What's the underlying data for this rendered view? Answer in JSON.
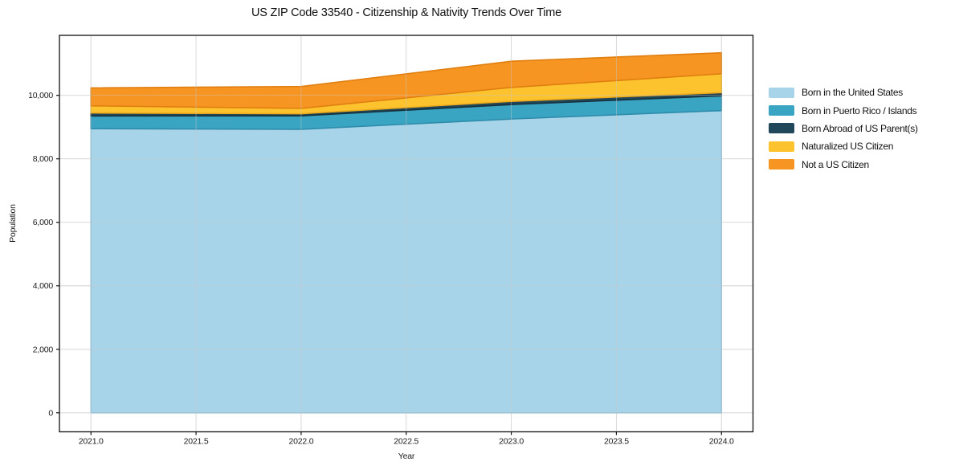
{
  "title": "US ZIP Code 33540 - Citizenship & Nativity Trends Over Time",
  "chart_data": {
    "type": "area",
    "stacked": true,
    "title": "US ZIP Code 33540 - Citizenship & Nativity Trends Over Time",
    "xlabel": "Year",
    "ylabel": "Population",
    "x": [
      2021,
      2022,
      2023,
      2024
    ],
    "series": [
      {
        "name": "Born in the United States",
        "color": "#a8d4e9",
        "edge": "#8fc3db",
        "values": [
          8950,
          8930,
          9255,
          9520
        ]
      },
      {
        "name": "Born in Puerto Rico / Islands",
        "color": "#3aa5c2",
        "edge": "#2e8cab",
        "values": [
          400,
          425,
          455,
          465
        ]
      },
      {
        "name": "Born Abroad of US Parent(s)",
        "color": "#21475a",
        "edge": "#17323f",
        "values": [
          95,
          65,
          100,
          100
        ]
      },
      {
        "name": "Naturalized US Citizen",
        "color": "#fcc32f",
        "edge": "#edaa1b",
        "values": [
          225,
          170,
          440,
          595
        ]
      },
      {
        "name": "Not a US Citizen",
        "color": "#f79522",
        "edge": "#e07f10",
        "values": [
          565,
          690,
          825,
          660
        ]
      }
    ],
    "totals": [
      10235,
      10280,
      11075,
      11340
    ],
    "xticks": {
      "values": [
        2021.0,
        2021.5,
        2022.0,
        2022.5,
        2023.0,
        2023.5,
        2024.0
      ],
      "labels": [
        "2021.0",
        "2021.5",
        "2022.0",
        "2022.5",
        "2023.0",
        "2023.5",
        "2024.0"
      ]
    },
    "yticks": {
      "values": [
        0,
        2000,
        4000,
        6000,
        8000,
        10000
      ],
      "labels": [
        "0",
        "2,000",
        "4,000",
        "6,000",
        "8,000",
        "10,000"
      ]
    },
    "xlim": [
      2020.85,
      2024.15
    ],
    "ylim": [
      -600,
      11890
    ],
    "grid": true,
    "legend_position": "right"
  }
}
